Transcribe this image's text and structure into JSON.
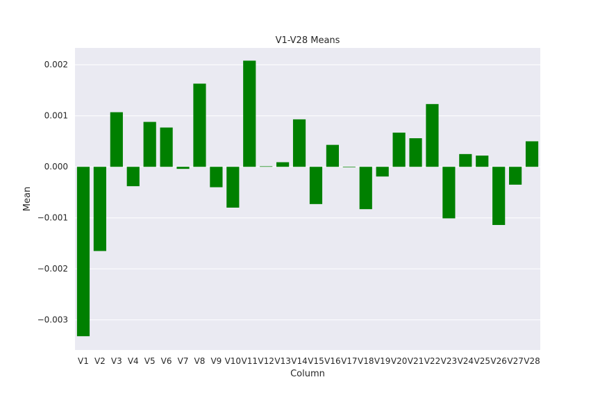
{
  "chart_data": {
    "type": "bar",
    "title": "V1-V28 Means",
    "xlabel": "Column",
    "ylabel": "Mean",
    "categories": [
      "V1",
      "V2",
      "V3",
      "V4",
      "V5",
      "V6",
      "V7",
      "V8",
      "V9",
      "V10",
      "V11",
      "V12",
      "V13",
      "V14",
      "V15",
      "V16",
      "V17",
      "V18",
      "V19",
      "V20",
      "V21",
      "V22",
      "V23",
      "V24",
      "V25",
      "V26",
      "V27",
      "V28"
    ],
    "values": [
      -0.00332,
      -0.00165,
      0.00107,
      -0.00038,
      0.00088,
      0.00077,
      -4e-05,
      0.00163,
      -0.0004,
      -0.0008,
      0.00208,
      1e-05,
      9e-05,
      0.00093,
      -0.00073,
      0.00043,
      -1e-05,
      -0.00083,
      -0.00019,
      0.00067,
      0.00056,
      0.00123,
      -0.00101,
      0.00025,
      0.00022,
      -0.00114,
      -0.00035,
      0.0005
    ],
    "ylim": [
      -0.00359,
      0.00233
    ],
    "yticks": [
      0.002,
      0.001,
      0.0,
      -0.001,
      -0.002,
      -0.003
    ],
    "ytick_labels": [
      "0.002",
      "0.001",
      "0.000",
      "−0.001",
      "−0.002",
      "−0.003"
    ],
    "grid": true,
    "colors": {
      "bar": "#008000",
      "plot_background": "#eaeaf2",
      "grid": "#ffffff"
    }
  }
}
